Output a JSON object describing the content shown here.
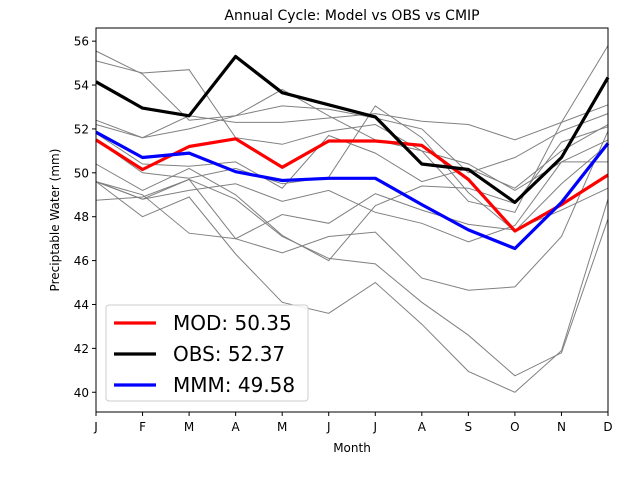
{
  "chart_data": {
    "type": "line",
    "title": "Annual Cycle: Model vs OBS vs CMIP",
    "xlabel": "Month",
    "ylabel": "Preciptable Water (mm)",
    "categories": [
      "J",
      "F",
      "M",
      "A",
      "M",
      "J",
      "J",
      "A",
      "S",
      "O",
      "N",
      "D"
    ],
    "ylim": [
      39.1,
      56.6
    ],
    "yticks": [
      40,
      42,
      44,
      46,
      48,
      50,
      52,
      54,
      56
    ],
    "grid": false,
    "legend_position": "lower-left",
    "series": [
      {
        "name": "MOD: 50.35",
        "color": "#ff0000",
        "values": [
          51.5,
          50.15,
          51.2,
          51.55,
          50.25,
          51.45,
          51.45,
          51.25,
          49.7,
          47.35,
          48.55,
          49.9
        ]
      },
      {
        "name": "OBS: 52.37",
        "color": "#000000",
        "values": [
          54.15,
          52.95,
          52.6,
          55.3,
          53.65,
          53.1,
          52.55,
          50.4,
          50.15,
          48.65,
          50.7,
          54.35
        ]
      },
      {
        "name": "MMM: 49.58",
        "color": "#0000ff",
        "values": [
          51.85,
          50.7,
          50.9,
          50.05,
          49.65,
          49.75,
          49.75,
          48.55,
          47.4,
          46.55,
          48.65,
          51.35
        ]
      }
    ],
    "cmip_members": {
      "color": "#808080",
      "series": [
        [
          55.55,
          54.5,
          52.4,
          52.6,
          53.8,
          52.6,
          51.5,
          51.0,
          50.4,
          49.2,
          50.5,
          51.5
        ],
        [
          55.1,
          54.55,
          54.7,
          51.6,
          51.3,
          51.9,
          52.2,
          51.0,
          48.7,
          48.2,
          52.3,
          55.8
        ],
        [
          52.4,
          51.6,
          52.6,
          52.3,
          52.3,
          52.5,
          52.7,
          52.35,
          52.2,
          51.5,
          52.3,
          53.1
        ],
        [
          52.2,
          51.6,
          52.0,
          52.6,
          53.05,
          52.9,
          52.5,
          52.0,
          50.0,
          50.7,
          51.9,
          52.7
        ],
        [
          51.8,
          50.4,
          50.3,
          50.5,
          49.3,
          51.7,
          50.9,
          49.6,
          50.2,
          49.3,
          51.0,
          52.2
        ],
        [
          51.5,
          50.0,
          49.75,
          50.2,
          49.5,
          49.8,
          53.05,
          51.6,
          49.1,
          47.35,
          49.5,
          51.3
        ],
        [
          49.6,
          48.8,
          49.2,
          49.5,
          48.7,
          49.2,
          48.2,
          47.7,
          46.85,
          47.6,
          50.5,
          50.5
        ],
        [
          48.75,
          48.9,
          49.7,
          48.8,
          47.1,
          46.1,
          45.85,
          44.1,
          42.6,
          40.75,
          41.8,
          47.9
        ],
        [
          49.6,
          48.0,
          48.9,
          46.3,
          44.1,
          43.6,
          45.0,
          43.1,
          40.95,
          40.0,
          41.9,
          48.8
        ],
        [
          49.6,
          49.0,
          47.25,
          47.0,
          48.1,
          47.7,
          49.05,
          48.3,
          47.65,
          47.4,
          48.3,
          49.3
        ],
        [
          49.6,
          48.8,
          49.7,
          47.0,
          46.35,
          47.1,
          47.3,
          45.2,
          44.65,
          44.8,
          47.1,
          51.9
        ],
        [
          50.4,
          49.2,
          50.2,
          49.0,
          47.15,
          46.0,
          48.5,
          49.4,
          49.3,
          48.6,
          51.4,
          52.1
        ]
      ]
    }
  }
}
